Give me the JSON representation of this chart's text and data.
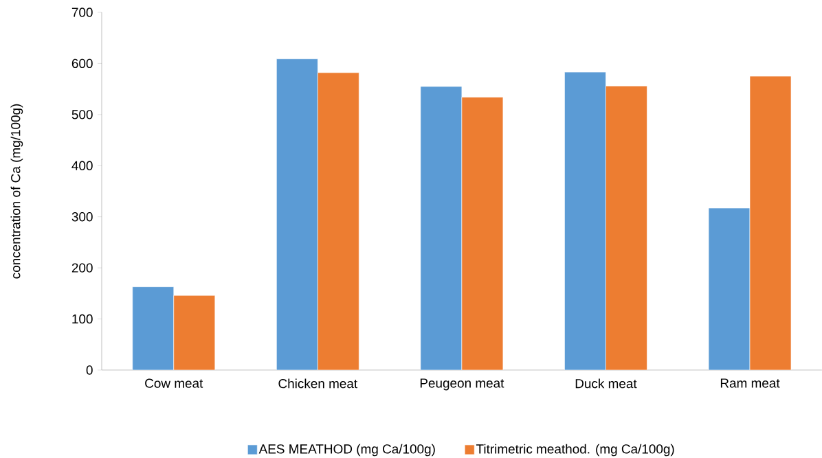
{
  "chart_data": {
    "type": "bar",
    "ylabel": "concentration of Ca (mg/100g)",
    "categories": [
      "Cow meat",
      "Chicken meat",
      "Peugeon meat",
      "Duck meat",
      "Ram meat"
    ],
    "series": [
      {
        "name": "AES MEATHOD (mg Ca/100g)",
        "color": "#5b9bd5",
        "values": [
          163,
          609,
          555,
          583,
          317
        ]
      },
      {
        "name": "Titrimetric meathod. (mg Ca/100g)",
        "color": "#ed7d31",
        "values": [
          146,
          582,
          534,
          556,
          575
        ]
      }
    ],
    "ylim": [
      0,
      700
    ],
    "yticks": [
      0,
      100,
      200,
      300,
      400,
      500,
      600,
      700
    ],
    "grid": false,
    "legend": "bottom"
  }
}
